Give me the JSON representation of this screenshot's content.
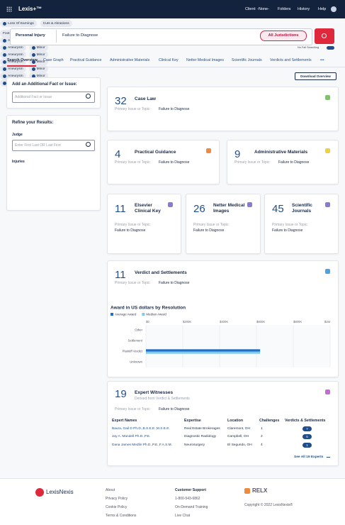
{
  "header": {
    "logo": "Lexis+™",
    "client": "Client: -None-",
    "links": [
      "Folders",
      "History",
      "Help"
    ]
  },
  "search": {
    "practice_area": "Personal Injury",
    "query": "Failure to Diagnose",
    "jurisdiction": "All Jurisdictions",
    "fall_searching": "No Fall Searching"
  },
  "tabs": [
    "Search Overview",
    "Case Graph",
    "Practical Guidance",
    "Administrative Materials",
    "Clinical Key",
    "Netter Medical Images",
    "Scientific Journals",
    "Verdicts and Settlements",
    "•••"
  ],
  "sidebar": {
    "add_title": "Add an Additional Fact or Issue:",
    "add_placeholder": "Additional Fact or Issue",
    "refine_title": "Refine your Results:",
    "judge_label": "Judge",
    "judge_placeholder": "Enter First Last OR Last First",
    "injuries_label": "Injuries",
    "injuries": [
      {
        "label": "EEOC",
        "checked": true
      },
      {
        "label": "Loss Of Legs, Feet & Toes",
        "checked": false
      },
      {
        "label": "Medical Expenses",
        "checked": true
      },
      {
        "label": "Hand",
        "checked": false
      },
      {
        "label": "Loss Of Earnings",
        "checked": true
      },
      {
        "label": "Cuts & Abrasions",
        "checked": false
      },
      {
        "label": "Foot & Toe Injuries & Disorders",
        "checked": false
      }
    ]
  },
  "download": "Download Overview",
  "issue_label": "Primary Issue or Topic:",
  "issue": "Failure to Diagnose",
  "tags": [
    "Aneurysm",
    "Minor"
  ],
  "cards": [
    {
      "count": 32,
      "title": "Case Law"
    },
    {
      "count": 4,
      "title": "Practical Guidance"
    },
    {
      "count": 9,
      "title": "Administrative Materials"
    },
    {
      "count": 11,
      "title": "Elsevier Clinical Key"
    },
    {
      "count": 26,
      "title": "Netter Medical Images"
    },
    {
      "count": 45,
      "title": "Scientific Journals"
    }
  ],
  "verdicts": {
    "count": 11,
    "title": "Verdict and Settlements"
  },
  "chart_data": {
    "type": "bar",
    "orientation": "horizontal",
    "title": "Award in US dollars by Resolution",
    "categories": [
      "Other",
      "Settlement",
      "Plaintiff Verdict",
      "Unknown"
    ],
    "series": [
      {
        "name": "Average Award",
        "color": "#1f6fc5",
        "values": [
          null,
          null,
          620000,
          null
        ]
      },
      {
        "name": "Median Award",
        "color": "#7fcbef",
        "values": [
          null,
          null,
          620000,
          null
        ]
      }
    ],
    "xlim": [
      0,
      1000000
    ],
    "xticks": [
      {
        "value": 0,
        "label": "$0"
      },
      {
        "value": 200000,
        "label": "$200K"
      },
      {
        "value": 400000,
        "label": "$400K"
      },
      {
        "value": 600000,
        "label": "$600K"
      },
      {
        "value": 800000,
        "label": "$800K"
      },
      {
        "value": 1000000,
        "label": "$1M"
      }
    ],
    "grid": true,
    "legend": "top-left"
  },
  "experts": {
    "count": 19,
    "title": "Expert Witnesses",
    "subtitle": "Derived from Verdict & Settlements",
    "columns": [
      "Expert Names",
      "Expertise",
      "Location",
      "Challenges",
      "Verdicts & Settlements"
    ],
    "rows": [
      [
        "Baura, Gail D Ph.D.,B.S.E.E.,M.S.E.E.",
        "Real Estate Brokerages",
        "Claremont, OH",
        1,
        7
      ],
      [
        "Jay A. Mandell Ph.D.,P.E.",
        "Diagnostic Radiology",
        "Campbell, OH",
        2,
        5
      ],
      [
        "Dana James Medlin Ph.D.,P.E.,F.A.S.M.",
        "Neurosurgery",
        "El Segundo, OH",
        4,
        1
      ]
    ],
    "see_all": "See All 19 Experts"
  },
  "footer": {
    "logo": "LexisNexis",
    "links": [
      "About",
      "Privacy Policy",
      "Cookie Policy",
      "Terms & Conditions"
    ],
    "support_title": "Customer Support",
    "support": [
      "1-800-543-6862",
      "On-Demand Training",
      "Live Chat"
    ],
    "relx": "RELX",
    "copyright": "Copyright © 2022 LexisNexis®"
  }
}
